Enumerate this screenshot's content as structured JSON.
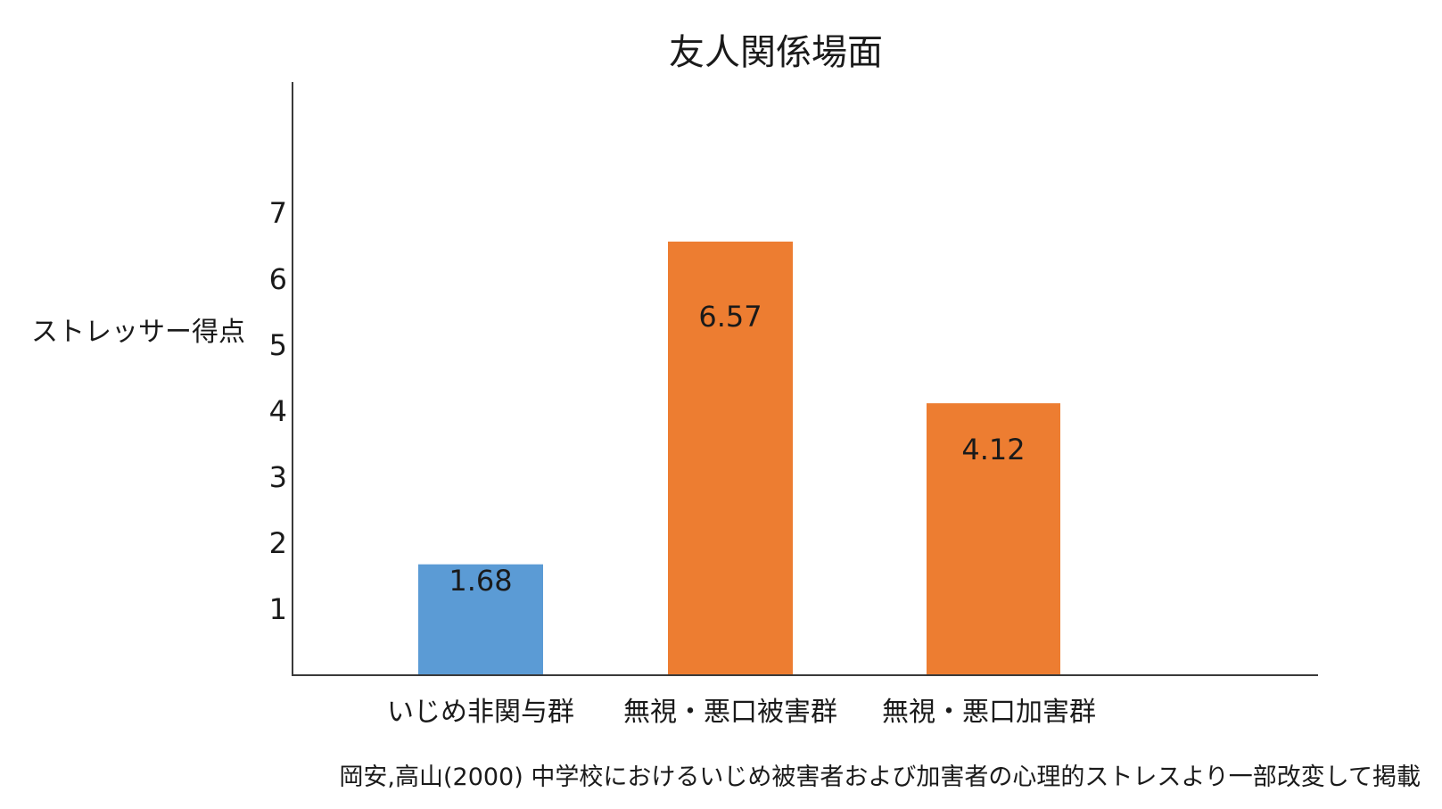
{
  "chart_data": {
    "type": "bar",
    "title": "友人関係場面",
    "ylabel": "ストレッサー得点",
    "xlabel": "",
    "categories": [
      "いじめ非関与群",
      "無視・悪口被害群",
      "無視・悪口加害群"
    ],
    "values": [
      1.68,
      6.57,
      4.12
    ],
    "data_labels": [
      "1.68",
      "6.57",
      "4.12"
    ],
    "bar_colors": [
      "#5b9bd5",
      "#ed7d31",
      "#ed7d31"
    ],
    "yticks": [
      "1",
      "2",
      "3",
      "4",
      "5",
      "6",
      "7"
    ],
    "ylim": [
      0,
      8.9
    ],
    "grid": false,
    "legend": "none"
  },
  "source_note": "岡安,高山(2000) 中学校におけるいじめ被害者および加害者の心理的ストレスより一部改変して掲載"
}
